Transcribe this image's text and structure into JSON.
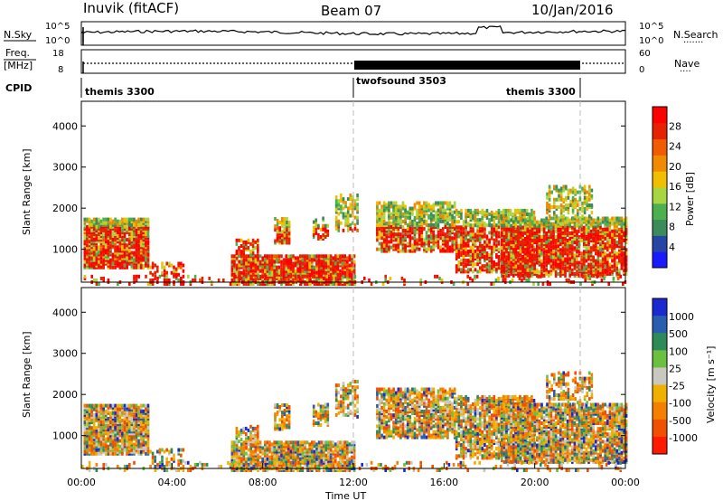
{
  "header": {
    "station": "Inuvik (fitACF)",
    "beam": "Beam 07",
    "date": "10/Jan/2016"
  },
  "noise_panel": {
    "left_label": "N.Sky",
    "right_label": "N.Search",
    "right_dots": "·······",
    "left_ticks": [
      "10^5",
      "10^0"
    ],
    "right_ticks": [
      "10^5",
      "10^0"
    ]
  },
  "freq_panel": {
    "left_label_1": "Freq.",
    "left_label_2": "[MHz]",
    "right_label": "Nave",
    "right_dots": "····",
    "left_ticks": [
      "18",
      "8"
    ],
    "right_ticks": [
      "60",
      "0"
    ]
  },
  "cpid_panel": {
    "label": "CPID",
    "segments": [
      {
        "name": "themis 3300",
        "start_hr": 0,
        "end_hr": 12
      },
      {
        "name": "twofsound 3503",
        "start_hr": 12,
        "end_hr": 22
      },
      {
        "name": "themis 3300",
        "start_hr": 22,
        "end_hr": 24
      }
    ]
  },
  "chart_data": [
    {
      "type": "heatmap",
      "ylabel": "Slant Range [km]",
      "ylim": [
        200,
        4600
      ],
      "yticks": [
        "1000",
        "2000",
        "3000",
        "4000"
      ],
      "xlim": [
        0,
        24
      ],
      "colorbar": {
        "label": "Power [dB]",
        "ticks": [
          "4",
          "8",
          "12",
          "16",
          "20",
          "24",
          "28"
        ],
        "colors": [
          "#1a1aff",
          "#2646a6",
          "#3d8a5a",
          "#4caf50",
          "#a8d642",
          "#f0c000",
          "#f08a00",
          "#f25c00",
          "#e62200",
          "#ff0000"
        ]
      }
    },
    {
      "type": "heatmap",
      "ylabel": "Slant Range [km]",
      "ylim": [
        200,
        4600
      ],
      "yticks": [
        "1000",
        "2000",
        "3000",
        "4000"
      ],
      "xlim": [
        0,
        24
      ],
      "xlabel": "Time UT",
      "xticks": [
        "00:00",
        "04:00",
        "08:00",
        "12:00",
        "16:00",
        "20:00",
        "00:00"
      ],
      "colorbar": {
        "label": "Velocity [m s⁻¹]",
        "ticks": [
          "1000",
          "500",
          "100",
          "25",
          "-25",
          "-100",
          "-500",
          "-1000"
        ],
        "colors": [
          "#1a2ad0",
          "#2a5cb0",
          "#2f8a5a",
          "#6cc040",
          "#c8c8c0",
          "#f0b000",
          "#f58000",
          "#f05000",
          "#ff1a00"
        ]
      }
    }
  ]
}
